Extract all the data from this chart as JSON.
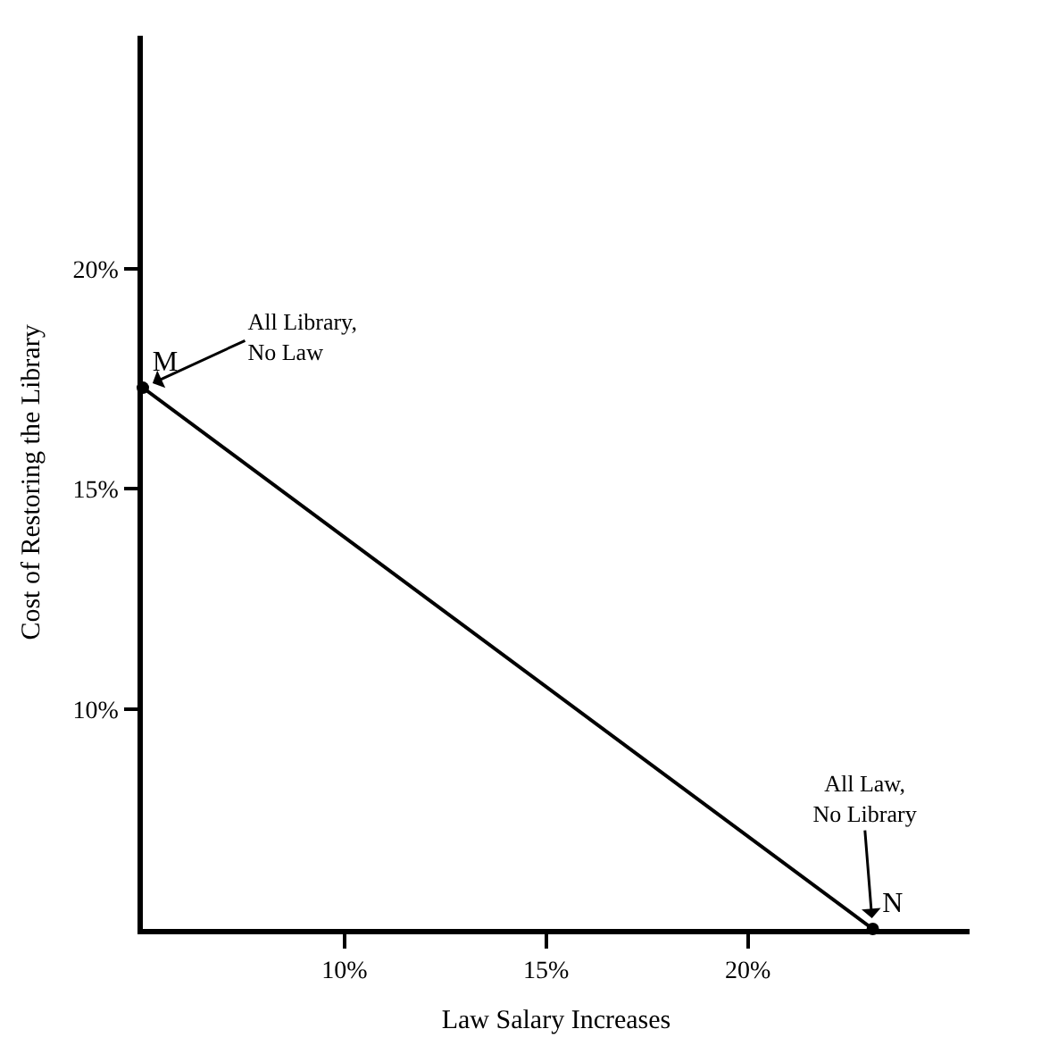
{
  "chart_data": {
    "type": "line",
    "xlabel": "Law Salary Increases",
    "ylabel": "Cost of Restoring the Library",
    "x": [
      5,
      23.1
    ],
    "series": [
      {
        "color": "#000000",
        "values": [
          17.3,
          5
        ],
        "value_labels": [
          "M",
          "N"
        ]
      }
    ],
    "xlim": [
      5,
      25.5
    ],
    "ylim": [
      5,
      25.3
    ],
    "xticks": [
      {
        "value": 10,
        "label": "10%"
      },
      {
        "value": 15,
        "label": "15%"
      },
      {
        "value": 20,
        "label": "20%"
      }
    ],
    "yticks": [
      {
        "value": 10,
        "label": "10%"
      },
      {
        "value": 15,
        "label": "15%"
      },
      {
        "value": 20,
        "label": "20%"
      }
    ],
    "marker": "circle",
    "line_style": "solid",
    "annotations": [
      {
        "text": "All Library,\nNo Law",
        "x": 5,
        "y": 17.3
      },
      {
        "text": "All Law,\nNo Library",
        "x": 23.1,
        "y": 5
      }
    ]
  }
}
